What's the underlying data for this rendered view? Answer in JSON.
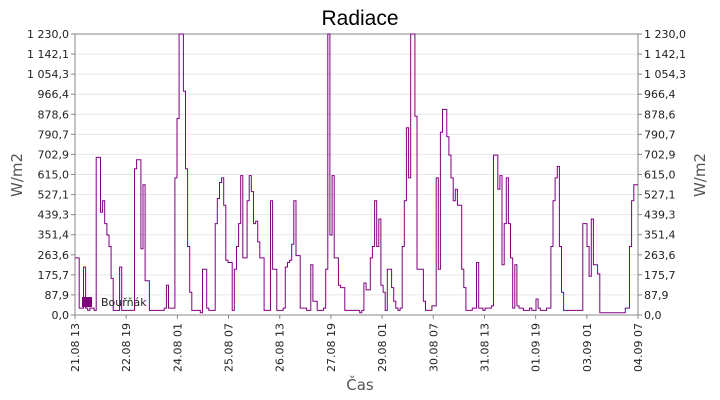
{
  "chart_data": {
    "type": "line",
    "title": "Radiace",
    "xlabel": "Čas",
    "ylabel": "W/m2",
    "ylabel_right": "W/m2",
    "ylim": [
      0,
      1230
    ],
    "yticks": [
      "0,0",
      "87,9",
      "175,7",
      "263,6",
      "351,4",
      "439,3",
      "527,1",
      "615,0",
      "702,9",
      "790,7",
      "878,6",
      "966,4",
      "1 054,3",
      "1 142,1",
      "1 230,0"
    ],
    "xticks": [
      "21.08 13",
      "22.08 19",
      "24.08 01",
      "25.08 07",
      "26.08 13",
      "27.08 19",
      "29.08 01",
      "30.08 07",
      "31.08 13",
      "01.09 19",
      "03.09 01",
      "04.09 07"
    ],
    "grid": true,
    "legend_position": "bottom-left",
    "colors": {
      "series": "#800080",
      "grid": "#e6e6e6",
      "axis": "#888888"
    },
    "series": [
      {
        "name": "Bouřňák",
        "x_range": [
          "21.08 13",
          "04.09 07"
        ],
        "values": [
          250,
          250,
          30,
          30,
          210,
          30,
          20,
          30,
          30,
          20,
          690,
          690,
          450,
          500,
          400,
          350,
          300,
          160,
          20,
          20,
          20,
          210,
          20,
          20,
          20,
          20,
          20,
          20,
          640,
          680,
          680,
          290,
          570,
          150,
          150,
          20,
          20,
          20,
          20,
          20,
          20,
          20,
          30,
          130,
          30,
          30,
          30,
          600,
          860,
          1230,
          1230,
          980,
          640,
          300,
          100,
          20,
          20,
          20,
          20,
          10,
          200,
          200,
          30,
          20,
          20,
          20,
          400,
          510,
          580,
          600,
          480,
          240,
          230,
          230,
          20,
          200,
          300,
          400,
          610,
          250,
          250,
          500,
          610,
          540,
          400,
          410,
          320,
          250,
          250,
          20,
          20,
          20,
          500,
          200,
          200,
          20,
          20,
          20,
          30,
          210,
          230,
          240,
          310,
          500,
          260,
          260,
          30,
          30,
          30,
          20,
          20,
          220,
          60,
          60,
          20,
          20,
          20,
          30,
          200,
          1230,
          350,
          610,
          250,
          250,
          130,
          120,
          120,
          20,
          20,
          20,
          20,
          20,
          20,
          20,
          10,
          20,
          140,
          110,
          110,
          250,
          300,
          500,
          300,
          420,
          130,
          100,
          20,
          200,
          200,
          120,
          60,
          30,
          20,
          30,
          300,
          500,
          820,
          600,
          1230,
          1230,
          870,
          200,
          200,
          200,
          60,
          20,
          20,
          20,
          40,
          40,
          600,
          200,
          800,
          900,
          900,
          780,
          700,
          600,
          500,
          550,
          480,
          480,
          200,
          120,
          20,
          20,
          20,
          30,
          30,
          230,
          30,
          30,
          20,
          30,
          30,
          30,
          40,
          700,
          700,
          550,
          610,
          220,
          400,
          600,
          400,
          250,
          30,
          220,
          40,
          30,
          30,
          20,
          20,
          20,
          30,
          20,
          20,
          70,
          30,
          20,
          20,
          20,
          30,
          30,
          300,
          500,
          600,
          650,
          300,
          100,
          20,
          20,
          20,
          20,
          20,
          20,
          20,
          20,
          20,
          400,
          400,
          300,
          170,
          420,
          220,
          220,
          180,
          10,
          10,
          10,
          10,
          10,
          10,
          10,
          10,
          10,
          10,
          10,
          10,
          30,
          30,
          300,
          500,
          570,
          570
        ]
      }
    ]
  }
}
